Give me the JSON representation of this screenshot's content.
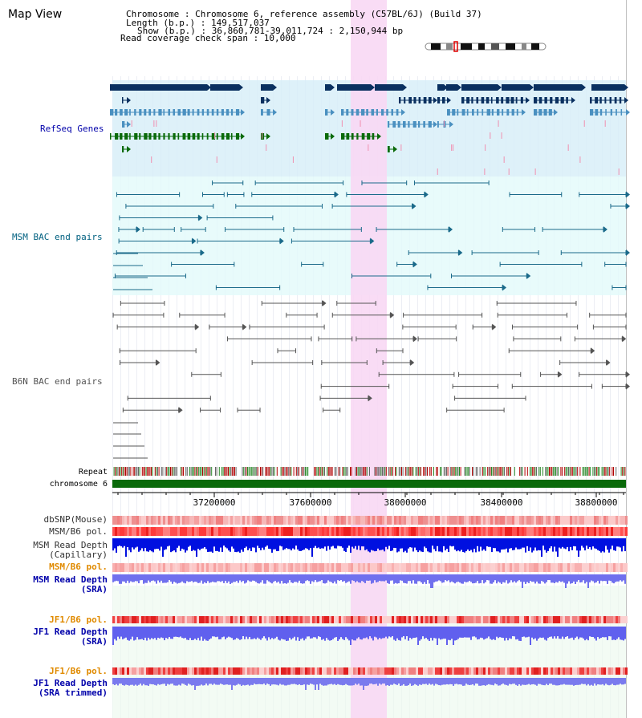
{
  "header": {
    "title": "Map View",
    "info_lines": [
      "Chromosome    : Chromosome 6, reference assembly (C57BL/6J) (Build 37)",
      "Length (b.p.) : 149,517,037",
      "Show (b.p.) : 36,860,781-39,011,724 : 2,150,944 bp",
      "Read coverage check span : 10,000"
    ]
  },
  "tracks": {
    "refseq_label": "RefSeq Genes",
    "msm_bac_label": "MSM BAC end pairs",
    "b6n_bac_label": "B6N BAC end pairs",
    "repeat_label": "Repeat",
    "chromosome_label": "chromosome 6",
    "dbsnp_label": "dbSNP(Mouse)",
    "msm_b6_pol_label": "MSM/B6 pol.",
    "msm_depth_cap_label_1": "MSM Read Depth",
    "msm_depth_cap_label_2": "(Capillary)",
    "msm_b6_pol2_label": "MSM/B6 pol.",
    "msm_depth_sra_label_1": "MSM Read Depth",
    "msm_depth_sra_label_2": "(SRA)",
    "jf1_pol_label": "JF1/B6 pol.",
    "jf1_depth_sra_label_1": "JF1 Read Depth",
    "jf1_depth_sra_label_2": "(SRA)",
    "jf1_pol2_label": "JF1/B6 pol.",
    "jf1_depth_trim_label_1": "JF1 Read Depth",
    "jf1_depth_trim_label_2": "(SRA trimmed)"
  },
  "axis": {
    "ticks": [
      "37200000",
      "37600000",
      "38000000",
      "38400000",
      "38800000"
    ]
  },
  "colors": {
    "refseq_dark": "#0a3060",
    "refseq_mid": "#4a90c0",
    "refseq_green": "#0a6a0a",
    "refseq_bg": "#d8eef8",
    "msm_bg": "#e4fafa",
    "msm_line": "#1a6a8a",
    "b6n_line": "#555555",
    "highlight": "#f8d8f4",
    "chromosome": "#0a6a0a",
    "label_blue": "#0000aa",
    "label_teal": "#006080",
    "label_orange": "#e08a00",
    "depth_blue": "#0000ee",
    "depth_light": "#6a6aee"
  }
}
